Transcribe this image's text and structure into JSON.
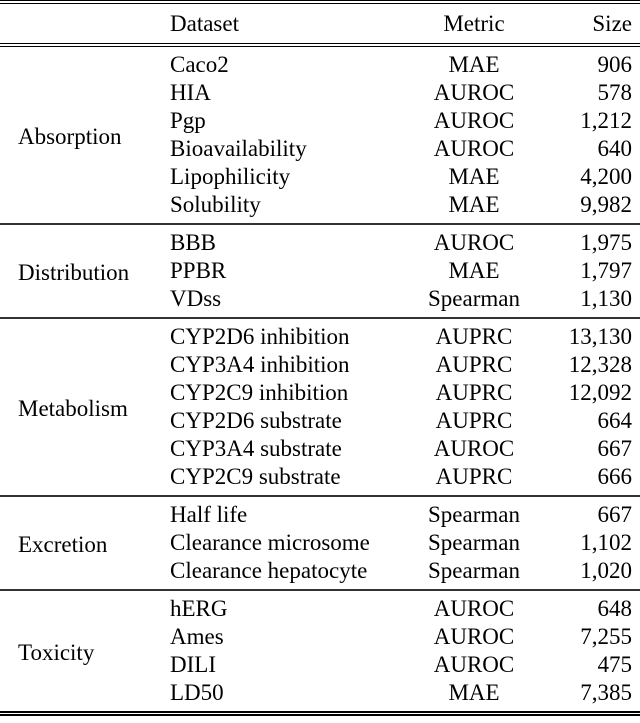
{
  "table": {
    "headers": {
      "category": "",
      "dataset": "Dataset",
      "metric": "Metric",
      "size": "Size"
    },
    "groups": [
      {
        "category": "Absorption",
        "rows": [
          {
            "dataset": "Caco2",
            "metric": "MAE",
            "size": "906"
          },
          {
            "dataset": "HIA",
            "metric": "AUROC",
            "size": "578"
          },
          {
            "dataset": "Pgp",
            "metric": "AUROC",
            "size": "1,212"
          },
          {
            "dataset": "Bioavailability",
            "metric": "AUROC",
            "size": "640"
          },
          {
            "dataset": "Lipophilicity",
            "metric": "MAE",
            "size": "4,200"
          },
          {
            "dataset": "Solubility",
            "metric": "MAE",
            "size": "9,982"
          }
        ]
      },
      {
        "category": "Distribution",
        "rows": [
          {
            "dataset": "BBB",
            "metric": "AUROC",
            "size": "1,975"
          },
          {
            "dataset": "PPBR",
            "metric": "MAE",
            "size": "1,797"
          },
          {
            "dataset": "VDss",
            "metric": "Spearman",
            "size": "1,130"
          }
        ]
      },
      {
        "category": "Metabolism",
        "rows": [
          {
            "dataset": "CYP2D6 inhibition",
            "metric": "AUPRC",
            "size": "13,130"
          },
          {
            "dataset": "CYP3A4 inhibition",
            "metric": "AUPRC",
            "size": "12,328"
          },
          {
            "dataset": "CYP2C9 inhibition",
            "metric": "AUPRC",
            "size": "12,092"
          },
          {
            "dataset": "CYP2D6 substrate",
            "metric": "AUPRC",
            "size": "664"
          },
          {
            "dataset": "CYP3A4 substrate",
            "metric": "AUROC",
            "size": "667"
          },
          {
            "dataset": "CYP2C9 substrate",
            "metric": "AUPRC",
            "size": "666"
          }
        ]
      },
      {
        "category": "Excretion",
        "rows": [
          {
            "dataset": "Half life",
            "metric": "Spearman",
            "size": "667"
          },
          {
            "dataset": "Clearance microsome",
            "metric": "Spearman",
            "size": "1,102"
          },
          {
            "dataset": "Clearance hepatocyte",
            "metric": "Spearman",
            "size": "1,020"
          }
        ]
      },
      {
        "category": "Toxicity",
        "rows": [
          {
            "dataset": "hERG",
            "metric": "AUROC",
            "size": "648"
          },
          {
            "dataset": "Ames",
            "metric": "AUROC",
            "size": "7,255"
          },
          {
            "dataset": "DILI",
            "metric": "AUROC",
            "size": "475"
          },
          {
            "dataset": "LD50",
            "metric": "MAE",
            "size": "7,385"
          }
        ]
      }
    ]
  }
}
